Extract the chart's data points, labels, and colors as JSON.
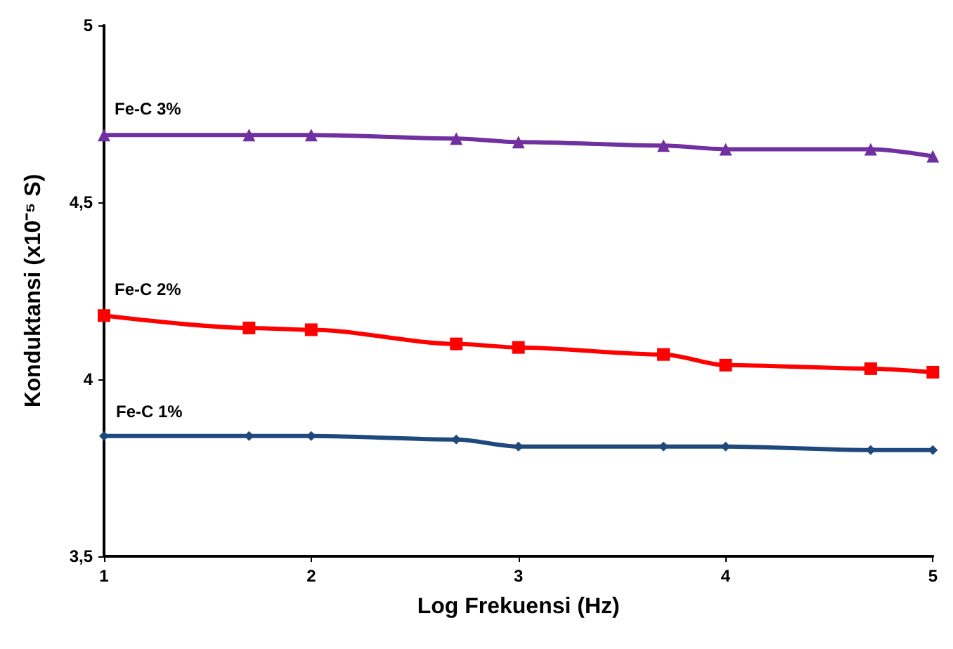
{
  "chart_data": {
    "type": "line",
    "xlabel": "Log Frekuensi (Hz)",
    "ylabel": "Konduktansi (x10⁻⁵ S)",
    "x": [
      1,
      1.7,
      2,
      2.7,
      3,
      3.7,
      4,
      4.7,
      5
    ],
    "xlim": [
      1,
      5
    ],
    "xticks": [
      1,
      2,
      3,
      4,
      5
    ],
    "ylim": [
      3.5,
      5
    ],
    "yticks": [
      {
        "value": 3.5,
        "label": "3,5"
      },
      4,
      {
        "value": 4.5,
        "label": "4,5"
      },
      5
    ],
    "grid": false,
    "legend": false,
    "series": [
      {
        "name": "Fe-C 3%",
        "color": "#7030a0",
        "marker": "triangle",
        "values": [
          4.69,
          4.69,
          4.69,
          4.68,
          4.67,
          4.66,
          4.65,
          4.65,
          4.63
        ]
      },
      {
        "name": "Fe-C 2%",
        "color": "#ff0000",
        "marker": "square",
        "values": [
          4.18,
          4.145,
          4.14,
          4.1,
          4.09,
          4.07,
          4.04,
          4.03,
          4.02
        ]
      },
      {
        "name": "Fe-C 1%",
        "color": "#1f497d",
        "marker": "diamond",
        "values": [
          3.84,
          3.84,
          3.84,
          3.83,
          3.81,
          3.81,
          3.81,
          3.8,
          3.8
        ]
      }
    ]
  }
}
